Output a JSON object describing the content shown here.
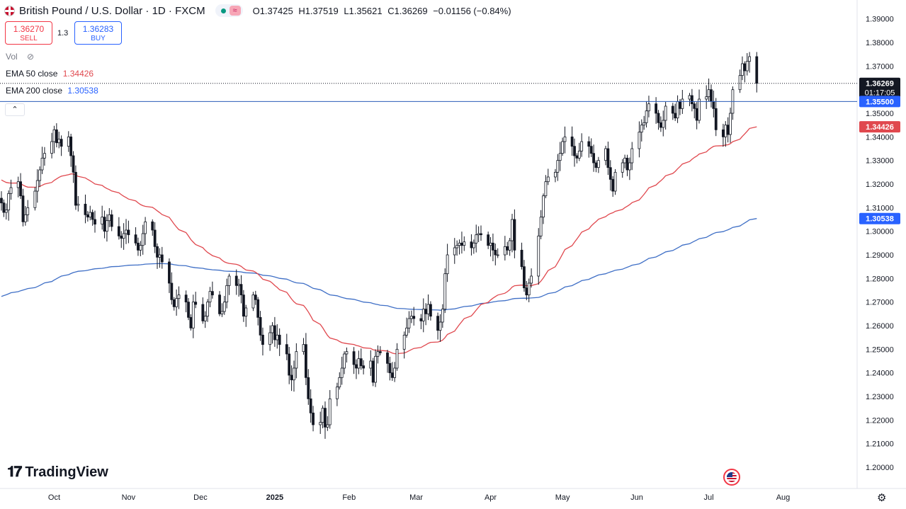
{
  "header": {
    "symbol": "British Pound / U.S. Dollar · 1D · FXCM",
    "open": "O1.37425",
    "high": "H1.37519",
    "low": "L1.35621",
    "close": "C1.36269",
    "change": "−0.01156 (−0.84%)"
  },
  "trade": {
    "sell_price": "1.36270",
    "sell_label": "SELL",
    "spread": "1.3",
    "buy_price": "1.36283",
    "buy_label": "BUY"
  },
  "legend": {
    "vol": "Vol",
    "ema50_label": "EMA 50 close",
    "ema50_value": "1.34426",
    "ema200_label": "EMA 200 close",
    "ema200_value": "1.30538"
  },
  "branding": {
    "name": "TradingView"
  },
  "colors": {
    "up": "#131722",
    "down": "#131722",
    "ema50": "#e0484e",
    "ema200": "#3f6fc6",
    "hline": "#2a5bb8",
    "price_label_bg": "#131722",
    "ema50_label_bg": "#e0484e",
    "ema200_label_bg": "#2962ff",
    "hline_label_bg": "#2962ff"
  },
  "chart_data": {
    "type": "candlestick",
    "title": "British Pound / U.S. Dollar · 1D · FXCM",
    "y_ticks": [
      "1.39000",
      "1.38000",
      "1.37000",
      "1.36000",
      "1.35000",
      "1.34000",
      "1.33000",
      "1.32000",
      "1.31000",
      "1.30000",
      "1.29000",
      "1.28000",
      "1.27000",
      "1.26000",
      "1.25000",
      "1.24000",
      "1.23000",
      "1.22000",
      "1.21000",
      "1.20000"
    ],
    "ylim": [
      1.194,
      1.392
    ],
    "x_ticks": [
      "Oct",
      "Nov",
      "Dec",
      "2025",
      "Feb",
      "Mar",
      "Apr",
      "May",
      "Jun",
      "Jul",
      "Aug"
    ],
    "series_start": "2024-09-09",
    "closes": [
      1.312,
      1.308,
      1.309,
      1.316,
      1.3185,
      1.321,
      1.315,
      1.304,
      1.307,
      1.31,
      1.317,
      1.3215,
      1.326,
      1.331,
      1.333,
      1.338,
      1.343,
      1.3375,
      1.339,
      1.336,
      1.34,
      1.332,
      1.325,
      1.311,
      1.3115,
      1.307,
      1.306,
      1.308,
      1.305,
      1.303,
      1.306,
      1.3,
      1.3045,
      1.307,
      1.302,
      1.298,
      1.297,
      1.299,
      1.3005,
      1.2985,
      1.295,
      1.292,
      1.294,
      1.299,
      1.304,
      1.3005,
      1.2935,
      1.289,
      1.29,
      1.287,
      1.278,
      1.271,
      1.268,
      1.2715,
      1.273,
      1.27,
      1.2635,
      1.259,
      1.27,
      1.269,
      1.262,
      1.264,
      1.27,
      1.2745,
      1.273,
      1.265,
      1.266,
      1.27,
      1.277,
      1.281,
      1.277,
      1.2775,
      1.273,
      1.264,
      1.2675,
      1.273,
      1.271,
      1.2635,
      1.256,
      1.252,
      1.257,
      1.26,
      1.254,
      1.256,
      1.252,
      1.248,
      1.239,
      1.237,
      1.242,
      1.249,
      1.252,
      1.238,
      1.229,
      1.223,
      1.218,
      1.219,
      1.225,
      1.217,
      1.218,
      1.229,
      1.234,
      1.238,
      1.242,
      1.248,
      1.249,
      1.2435,
      1.242,
      1.246,
      1.243,
      1.242,
      1.245,
      1.236,
      1.247,
      1.249,
      1.2485,
      1.244,
      1.24,
      1.238,
      1.242,
      1.25,
      1.256,
      1.259,
      1.263,
      1.264,
      1.263,
      1.262,
      1.267,
      1.265,
      1.269,
      1.264,
      1.258,
      1.2615,
      1.267,
      1.282,
      1.29,
      1.293,
      1.294,
      1.295,
      1.294,
      1.2955,
      1.293,
      1.295,
      1.2985,
      1.299,
      1.2985,
      1.294,
      1.295,
      1.292,
      1.29,
      1.29,
      1.2935,
      1.292,
      1.296,
      1.305,
      1.292,
      1.285,
      1.276,
      1.273,
      1.278,
      1.281,
      1.298,
      1.306,
      1.315,
      1.321,
      1.323,
      1.325,
      1.33,
      1.333,
      1.338,
      1.34,
      1.336,
      1.332,
      1.331,
      1.334,
      1.338,
      1.336,
      1.333,
      1.329,
      1.327,
      1.33,
      1.335,
      1.327,
      1.322,
      1.317,
      1.325,
      1.329,
      1.331,
      1.326,
      1.329,
      1.335,
      1.342,
      1.345,
      1.346,
      1.351,
      1.354,
      1.35,
      1.346,
      1.344,
      1.347,
      1.353,
      1.35,
      1.348,
      1.355,
      1.352,
      1.356,
      1.3575,
      1.354,
      1.352,
      1.347,
      1.356,
      1.357,
      1.36,
      1.355,
      1.352,
      1.343,
      1.34,
      1.345,
      1.341,
      1.35,
      1.36,
      1.366,
      1.371,
      1.368,
      1.372,
      1.374,
      1.3627
    ],
    "ema50": {
      "name": "EMA 50 close",
      "last": 1.34426
    },
    "ema200": {
      "name": "EMA 200 close",
      "last": 1.30538
    },
    "hline": 1.355,
    "last_close": 1.36269,
    "countdown": "01:17:05",
    "price_labels": {
      "last": "1.36269",
      "hline": "1.35500",
      "ema50": "1.34426",
      "ema200": "1.30538"
    },
    "grid": false,
    "legend_position": "top-left"
  }
}
